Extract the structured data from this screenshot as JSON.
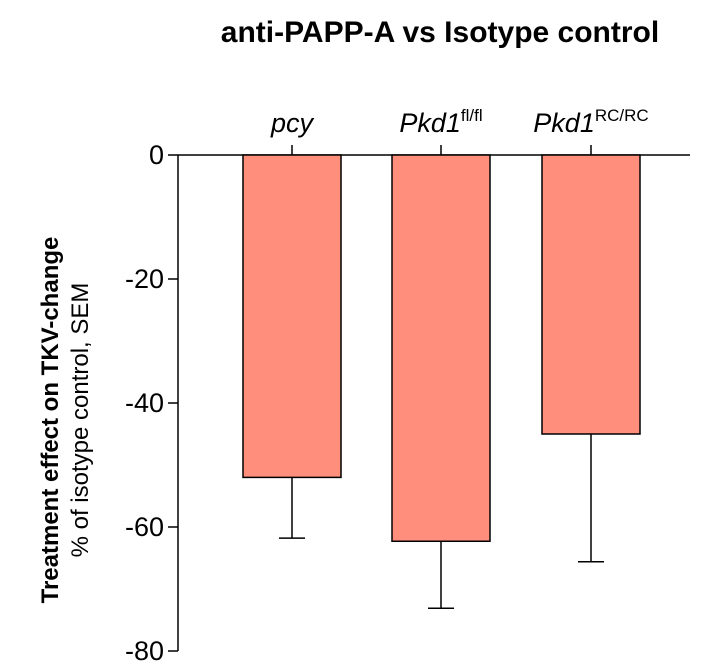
{
  "chart_data": {
    "type": "bar",
    "title": "anti-PAPP-A vs Isotype control",
    "ylabel_main": "Treatment effect on TKV-change",
    "ylabel_sub": "% of isotype control, SEM",
    "categories": [
      {
        "name": "pcy",
        "sup": ""
      },
      {
        "name": "Pkd1",
        "sup": "fl/fl"
      },
      {
        "name": "Pkd1",
        "sup": "RC/RC"
      }
    ],
    "values": [
      -52,
      -62.3,
      -45
    ],
    "errors": [
      9.8,
      10.8,
      20.6
    ],
    "yticks": [
      "0",
      "-20",
      "-40",
      "-60",
      "-80"
    ],
    "ylim": [
      -80,
      0
    ],
    "bar_color": "#FF8E7D",
    "grid": false,
    "xaxis_position": "top"
  }
}
